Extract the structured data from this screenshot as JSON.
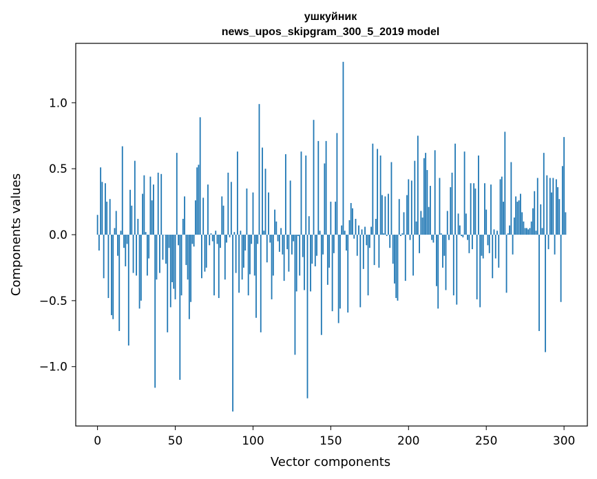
{
  "chart_data": {
    "type": "bar",
    "title_line1": "ушкуйник",
    "title_line2": "news_upos_skipgram_300_5_2019 model",
    "xlabel": "Vector components",
    "ylabel": "Components values",
    "xlim": [
      -14,
      315
    ],
    "ylim": [
      -1.45,
      1.45
    ],
    "xticks": [
      0,
      50,
      100,
      150,
      200,
      250,
      300
    ],
    "xtick_labels": [
      "0",
      "50",
      "100",
      "150",
      "200",
      "250",
      "300"
    ],
    "yticks": [
      -1.0,
      -0.5,
      0.0,
      0.5,
      1.0
    ],
    "ytick_labels": [
      "−1.0",
      "−0.5",
      "0.0",
      "0.5",
      "1.0"
    ],
    "bar_color": "#1f77b4",
    "grid": false,
    "values": [
      0.15,
      -0.12,
      0.51,
      0.4,
      -0.33,
      0.39,
      0.25,
      -0.48,
      0.27,
      -0.61,
      -0.64,
      0.05,
      0.18,
      -0.16,
      -0.73,
      0.03,
      0.67,
      -0.1,
      -0.24,
      -0.07,
      -0.84,
      0.34,
      0.22,
      -0.29,
      0.56,
      -0.31,
      0.12,
      -0.56,
      -0.5,
      0.31,
      0.45,
      0.02,
      -0.31,
      -0.18,
      0.44,
      0.26,
      0.38,
      -1.16,
      -0.34,
      0.47,
      -0.29,
      0.46,
      -0.19,
      0.0,
      -0.22,
      -0.74,
      -0.1,
      -0.55,
      -0.36,
      -0.41,
      -0.49,
      0.62,
      -0.08,
      -1.1,
      -0.46,
      0.12,
      0.29,
      -0.23,
      -0.34,
      -0.64,
      -0.51,
      -0.07,
      -0.09,
      0.26,
      0.51,
      0.53,
      0.89,
      -0.33,
      0.28,
      -0.28,
      -0.25,
      0.38,
      -0.08,
      0.01,
      -0.05,
      -0.46,
      0.03,
      -0.07,
      -0.48,
      -0.1,
      0.29,
      0.22,
      -0.34,
      -0.06,
      0.47,
      -0.02,
      0.4,
      -1.34,
      0.02,
      -0.29,
      0.63,
      -0.44,
      0.03,
      -0.34,
      -0.25,
      -0.12,
      0.35,
      -0.46,
      -0.3,
      -0.07,
      0.32,
      -0.31,
      -0.63,
      -0.07,
      0.99,
      -0.74,
      0.66,
      0.03,
      0.5,
      -0.21,
      0.32,
      -0.06,
      -0.49,
      -0.31,
      0.19,
      0.1,
      -0.05,
      -0.13,
      0.05,
      -0.15,
      -0.35,
      0.61,
      -0.11,
      -0.28,
      0.41,
      -0.15,
      -0.05,
      -0.91,
      -0.43,
      -0.01,
      -0.31,
      0.63,
      -0.17,
      -0.42,
      0.6,
      -1.24,
      0.14,
      -0.43,
      -0.22,
      0.87,
      -0.24,
      -0.16,
      0.71,
      0.03,
      -0.76,
      -0.15,
      0.54,
      0.71,
      -0.38,
      -0.25,
      0.25,
      -0.58,
      -0.14,
      0.25,
      0.77,
      -0.67,
      -0.56,
      0.07,
      1.31,
      0.03,
      -0.12,
      -0.59,
      0.11,
      0.24,
      0.2,
      -0.03,
      0.12,
      -0.16,
      0.07,
      -0.55,
      0.04,
      -0.26,
      0.06,
      -0.08,
      -0.46,
      -0.1,
      0.06,
      0.69,
      -0.23,
      0.12,
      0.65,
      -0.25,
      0.6,
      0.3,
      0.01,
      0.29,
      -0.01,
      0.31,
      -0.1,
      0.55,
      -0.22,
      -0.37,
      -0.48,
      -0.5,
      0.27,
      -0.01,
      0.01,
      0.17,
      -0.35,
      0.3,
      0.42,
      -0.04,
      0.41,
      -0.31,
      0.56,
      0.1,
      0.75,
      -0.14,
      0.18,
      0.13,
      0.58,
      0.62,
      0.49,
      0.21,
      0.37,
      -0.04,
      -0.06,
      0.64,
      -0.39,
      -0.56,
      0.43,
      0.01,
      -0.25,
      -0.16,
      -0.42,
      0.18,
      -0.04,
      0.36,
      0.47,
      -0.46,
      0.69,
      -0.53,
      0.16,
      0.07,
      -0.01,
      -0.02,
      0.63,
      0.16,
      -0.04,
      -0.14,
      0.39,
      -0.11,
      0.39,
      0.35,
      -0.49,
      0.6,
      -0.55,
      -0.16,
      -0.18,
      0.39,
      0.19,
      -0.08,
      -0.14,
      0.38,
      -0.33,
      0.04,
      -0.18,
      0.03,
      -0.25,
      0.42,
      0.44,
      0.25,
      0.78,
      -0.44,
      0.01,
      0.07,
      0.55,
      -0.15,
      0.13,
      0.29,
      0.25,
      0.26,
      0.31,
      0.17,
      0.1,
      0.05,
      0.05,
      0.04,
      0.05,
      0.1,
      0.2,
      0.33,
      0.03,
      0.43,
      -0.73,
      0.23,
      0.05,
      0.62,
      -0.89,
      0.45,
      -0.11,
      0.43,
      0.32,
      0.43,
      -0.15,
      0.42,
      0.36,
      0.27,
      -0.51,
      0.52,
      0.74,
      0.17
    ]
  }
}
